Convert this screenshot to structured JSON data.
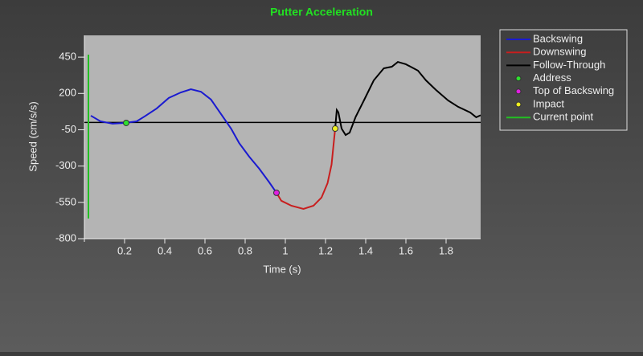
{
  "chart_data": {
    "type": "line",
    "title": "Putter Acceleration",
    "x_label": "Time (s)",
    "y_label": "Speed (cm/s/s)",
    "xlim": [
      0,
      1.972
    ],
    "xticks": [
      0.2,
      0.4,
      0.6,
      0.8,
      1.0,
      1.2,
      1.4,
      1.6,
      1.8
    ],
    "ylim": [
      -800,
      600
    ],
    "yticks": [
      450,
      200,
      -50,
      -300,
      -550,
      -800
    ],
    "reference_line": 0,
    "legend": "outside right",
    "series": [
      {
        "name": "Backswing",
        "color": "#1a1ad0",
        "style": "line",
        "x": [
          0.032,
          0.08,
          0.14,
          0.2,
          0.26,
          0.3,
          0.36,
          0.42,
          0.48,
          0.53,
          0.58,
          0.63,
          0.68,
          0.73,
          0.77,
          0.82,
          0.87,
          0.92,
          0.956
        ],
        "values": [
          47,
          8,
          -8,
          -3,
          8,
          42,
          97,
          169,
          207,
          229,
          212,
          158,
          58,
          -42,
          -141,
          -235,
          -318,
          -412,
          -484
        ]
      },
      {
        "name": "Downswing",
        "color": "#c81e1e",
        "style": "line",
        "x": [
          0.956,
          0.98,
          1.03,
          1.09,
          1.14,
          1.18,
          1.21,
          1.23,
          1.248
        ],
        "values": [
          -484,
          -539,
          -573,
          -595,
          -573,
          -517,
          -418,
          -290,
          -42
        ]
      },
      {
        "name": "Follow-Through",
        "color": "#000000",
        "style": "line",
        "x": [
          1.248,
          1.256,
          1.264,
          1.28,
          1.3,
          1.32,
          1.35,
          1.39,
          1.44,
          1.49,
          1.53,
          1.56,
          1.6,
          1.66,
          1.7,
          1.75,
          1.81,
          1.86,
          1.92,
          1.95,
          1.972
        ],
        "values": [
          -42,
          86,
          70,
          -42,
          -86,
          -70,
          39,
          149,
          290,
          373,
          384,
          417,
          401,
          357,
          290,
          224,
          152,
          108,
          69,
          36,
          50
        ]
      },
      {
        "name": "Address",
        "color": "#2ee02e",
        "style": "marker",
        "x": [
          0.208
        ],
        "values": [
          -3
        ]
      },
      {
        "name": "Top of Backswing",
        "color": "#e020e0",
        "style": "marker",
        "x": [
          0.956
        ],
        "values": [
          -484
        ]
      },
      {
        "name": "Impact",
        "color": "#f0f020",
        "style": "marker",
        "x": [
          1.248
        ],
        "values": [
          -42
        ]
      },
      {
        "name": "Current point",
        "color": "#22c022",
        "style": "vline",
        "x": [
          0.02,
          0.02
        ],
        "values": [
          467,
          -661
        ]
      }
    ]
  }
}
